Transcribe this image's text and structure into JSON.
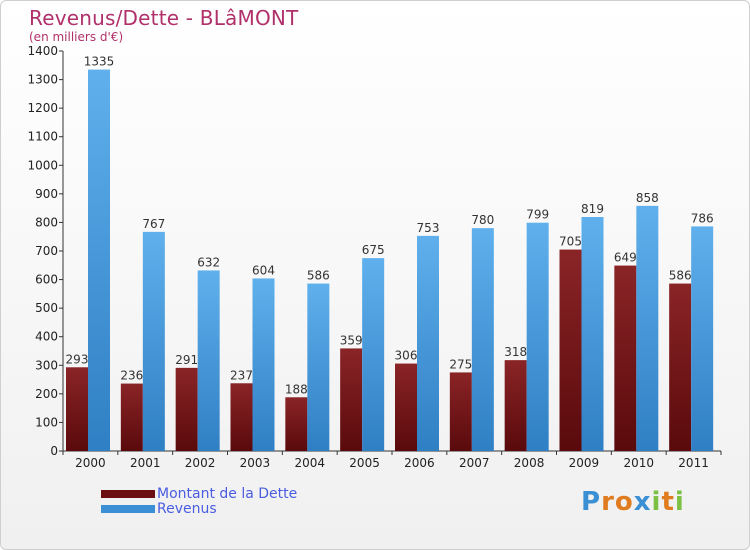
{
  "header": {
    "title": "Revenus/Dette - BLâMONT",
    "subtitle": "(en milliers d'€)"
  },
  "logo": {
    "text": "Proxiti",
    "letters": [
      "P",
      "r",
      "o",
      "x",
      "i",
      "t",
      "i"
    ],
    "colors": [
      "#3b8fd4",
      "#e07c1f",
      "#e07c1f",
      "#3b8fd4",
      "#7cc143",
      "#e07c1f",
      "#7cc143"
    ]
  },
  "chart_data": {
    "type": "bar",
    "categories": [
      "2000",
      "2001",
      "2002",
      "2003",
      "2004",
      "2005",
      "2006",
      "2007",
      "2008",
      "2009",
      "2010",
      "2011"
    ],
    "series": [
      {
        "name": "Montant de la Dette",
        "color": "#6b0f12",
        "values": [
          293,
          236,
          291,
          237,
          188,
          359,
          306,
          275,
          318,
          705,
          649,
          586
        ]
      },
      {
        "name": "Revenus",
        "color": "#3b8fd4",
        "values": [
          1335,
          767,
          632,
          604,
          586,
          675,
          753,
          780,
          799,
          819,
          858,
          786
        ]
      }
    ],
    "ylim": [
      0,
      1400
    ],
    "yticks": [
      0,
      100,
      200,
      300,
      400,
      500,
      600,
      700,
      800,
      900,
      1000,
      1100,
      1200,
      1300,
      1400
    ],
    "grid": false,
    "legend_position": "bottom-left"
  }
}
